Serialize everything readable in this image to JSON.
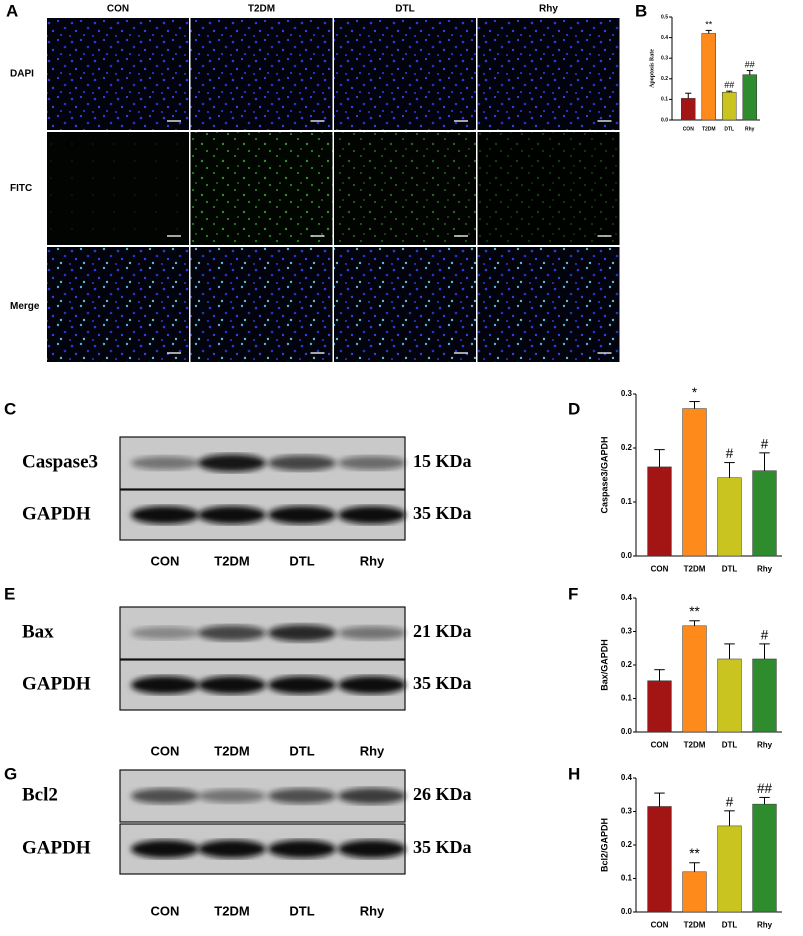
{
  "figure": {
    "panel_a": {
      "label": "A",
      "columns": [
        "CON",
        "T2DM",
        "DTL",
        "Rhy"
      ],
      "rows": [
        "DAPI",
        "FITC",
        "Merge"
      ]
    },
    "blots": [
      {
        "label": "C",
        "proteins": [
          "Caspase3",
          "GAPDH"
        ],
        "sizes": [
          "15 KDa",
          "35 KDa"
        ],
        "lanes": [
          "CON",
          "T2DM",
          "DTL",
          "Rhy"
        ]
      },
      {
        "label": "E",
        "proteins": [
          "Bax",
          "GAPDH"
        ],
        "sizes": [
          "21 KDa",
          "35 KDa"
        ],
        "lanes": [
          "CON",
          "T2DM",
          "DTL",
          "Rhy"
        ]
      },
      {
        "label": "G",
        "proteins": [
          "Bcl2",
          "GAPDH"
        ],
        "sizes": [
          "26 KDa",
          "35 KDa"
        ],
        "lanes": [
          "CON",
          "T2DM",
          "DTL",
          "Rhy"
        ]
      }
    ]
  },
  "chart_data": [
    {
      "type": "bar",
      "label": "B",
      "ylabel": "Apoptosis Rate",
      "categories": [
        "CON",
        "T2DM",
        "DTL",
        "Rhy"
      ],
      "values": [
        0.105,
        0.42,
        0.135,
        0.22
      ],
      "errors": [
        0.025,
        0.015,
        0.005,
        0.02
      ],
      "annotations": [
        null,
        "**",
        "##",
        "##"
      ],
      "colors": [
        "#a31515",
        "#ff8a1c",
        "#c9c41f",
        "#2e8b2e"
      ],
      "ylim": [
        0,
        0.5
      ],
      "yticks": [
        {
          "value": 0,
          "label": "0.0"
        },
        0.1,
        0.2,
        0.3,
        0.4,
        0.5
      ]
    },
    {
      "type": "bar",
      "label": "D",
      "ylabel": "Caspase3/GAPDH",
      "categories": [
        "CON",
        "T2DM",
        "DTL",
        "Rhy"
      ],
      "values": [
        0.165,
        0.273,
        0.145,
        0.158
      ],
      "errors": [
        0.032,
        0.013,
        0.028,
        0.033
      ],
      "annotations": [
        null,
        "*",
        "#",
        "#"
      ],
      "colors": [
        "#a31515",
        "#ff8a1c",
        "#c9c41f",
        "#2e8b2e"
      ],
      "ylim": [
        0,
        0.3
      ],
      "yticks": [
        {
          "value": 0,
          "label": "0.0"
        },
        0.1,
        0.2,
        0.3
      ]
    },
    {
      "type": "bar",
      "label": "F",
      "ylabel": "Bax/GAPDH",
      "categories": [
        "CON",
        "T2DM",
        "DTL",
        "Rhy"
      ],
      "values": [
        0.153,
        0.317,
        0.218,
        0.218
      ],
      "errors": [
        0.033,
        0.015,
        0.045,
        0.045
      ],
      "annotations": [
        null,
        "**",
        null,
        "#"
      ],
      "colors": [
        "#a31515",
        "#ff8a1c",
        "#c9c41f",
        "#2e8b2e"
      ],
      "ylim": [
        0,
        0.4
      ],
      "yticks": [
        {
          "value": 0,
          "label": "0.0"
        },
        0.1,
        0.2,
        0.3,
        0.4
      ]
    },
    {
      "type": "bar",
      "label": "H",
      "ylabel": "Bcl2/GAPDH",
      "categories": [
        "CON",
        "T2DM",
        "DTL",
        "Rhy"
      ],
      "values": [
        0.315,
        0.12,
        0.257,
        0.322
      ],
      "errors": [
        0.04,
        0.027,
        0.045,
        0.02
      ],
      "annotations": [
        null,
        "**",
        "#",
        "##"
      ],
      "colors": [
        "#a31515",
        "#ff8a1c",
        "#c9c41f",
        "#2e8b2e"
      ],
      "ylim": [
        0,
        0.4
      ],
      "yticks": [
        {
          "value": 0,
          "label": "0.0"
        },
        0.1,
        0.2,
        0.3,
        0.4
      ]
    }
  ]
}
